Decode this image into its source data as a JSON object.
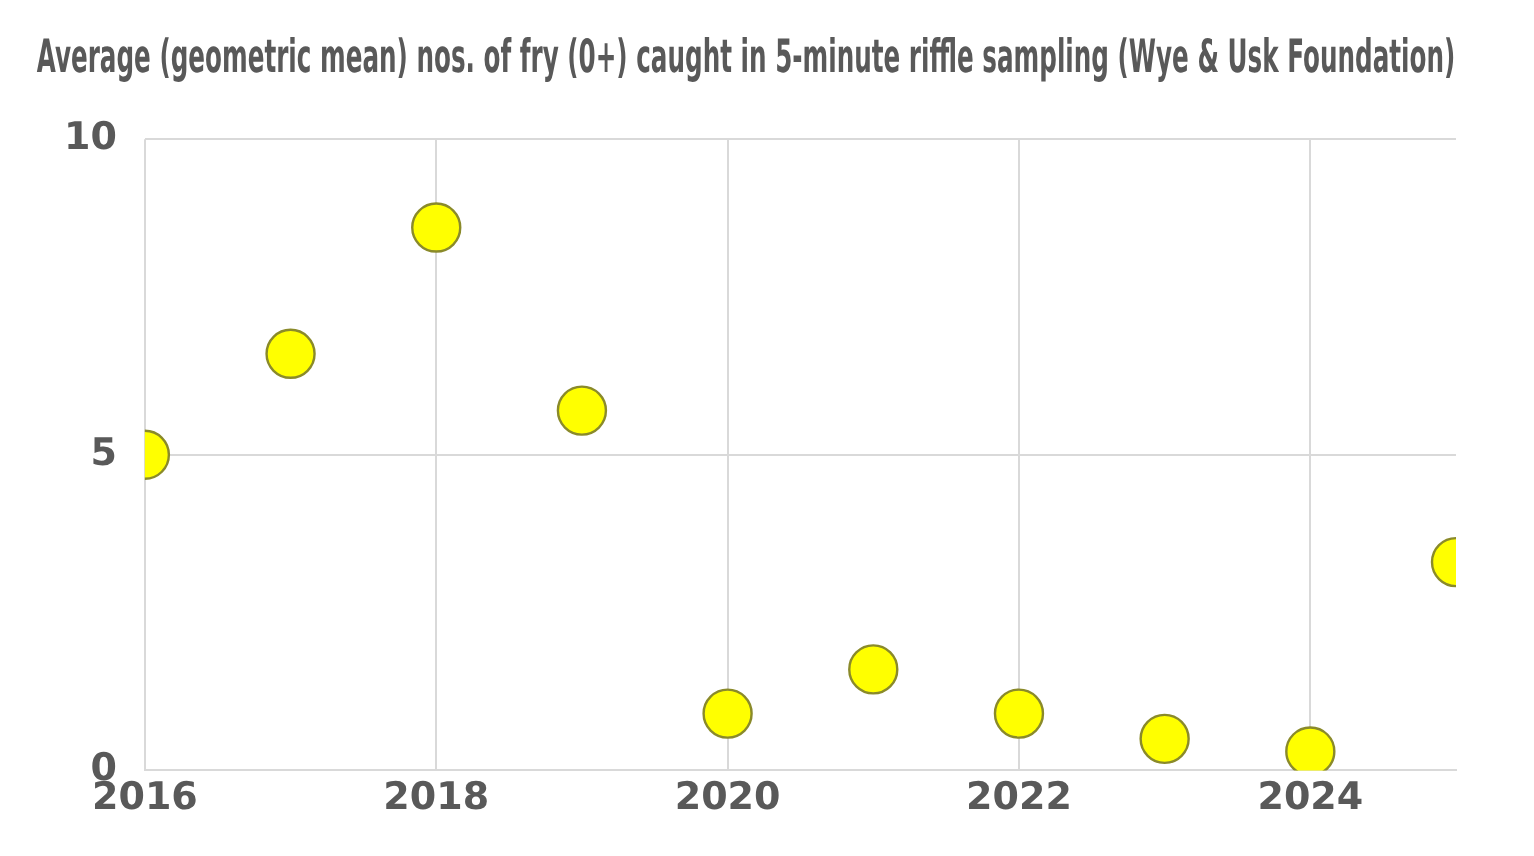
{
  "chart_data": {
    "type": "scatter",
    "title": "Average (geometric mean) nos. of fry (0+) caught in 5-minute riffle sampling (Wye & Usk Foundation)",
    "x": [
      2016,
      2017,
      2018,
      2019,
      2020,
      2021,
      2022,
      2023,
      2024,
      2025
    ],
    "series": [
      {
        "color": "#ffff00",
        "values": [
          5.0,
          6.6,
          8.6,
          5.7,
          0.9,
          1.6,
          0.9,
          0.5,
          0.3,
          3.3
        ]
      }
    ],
    "xlim": [
      2016,
      2025
    ],
    "xticks": [
      2016,
      2018,
      2020,
      2022,
      2024
    ],
    "ylim": [
      0,
      10
    ],
    "yticks": [
      0,
      5,
      10
    ],
    "grid": true,
    "marker": "circle",
    "legend": false
  }
}
